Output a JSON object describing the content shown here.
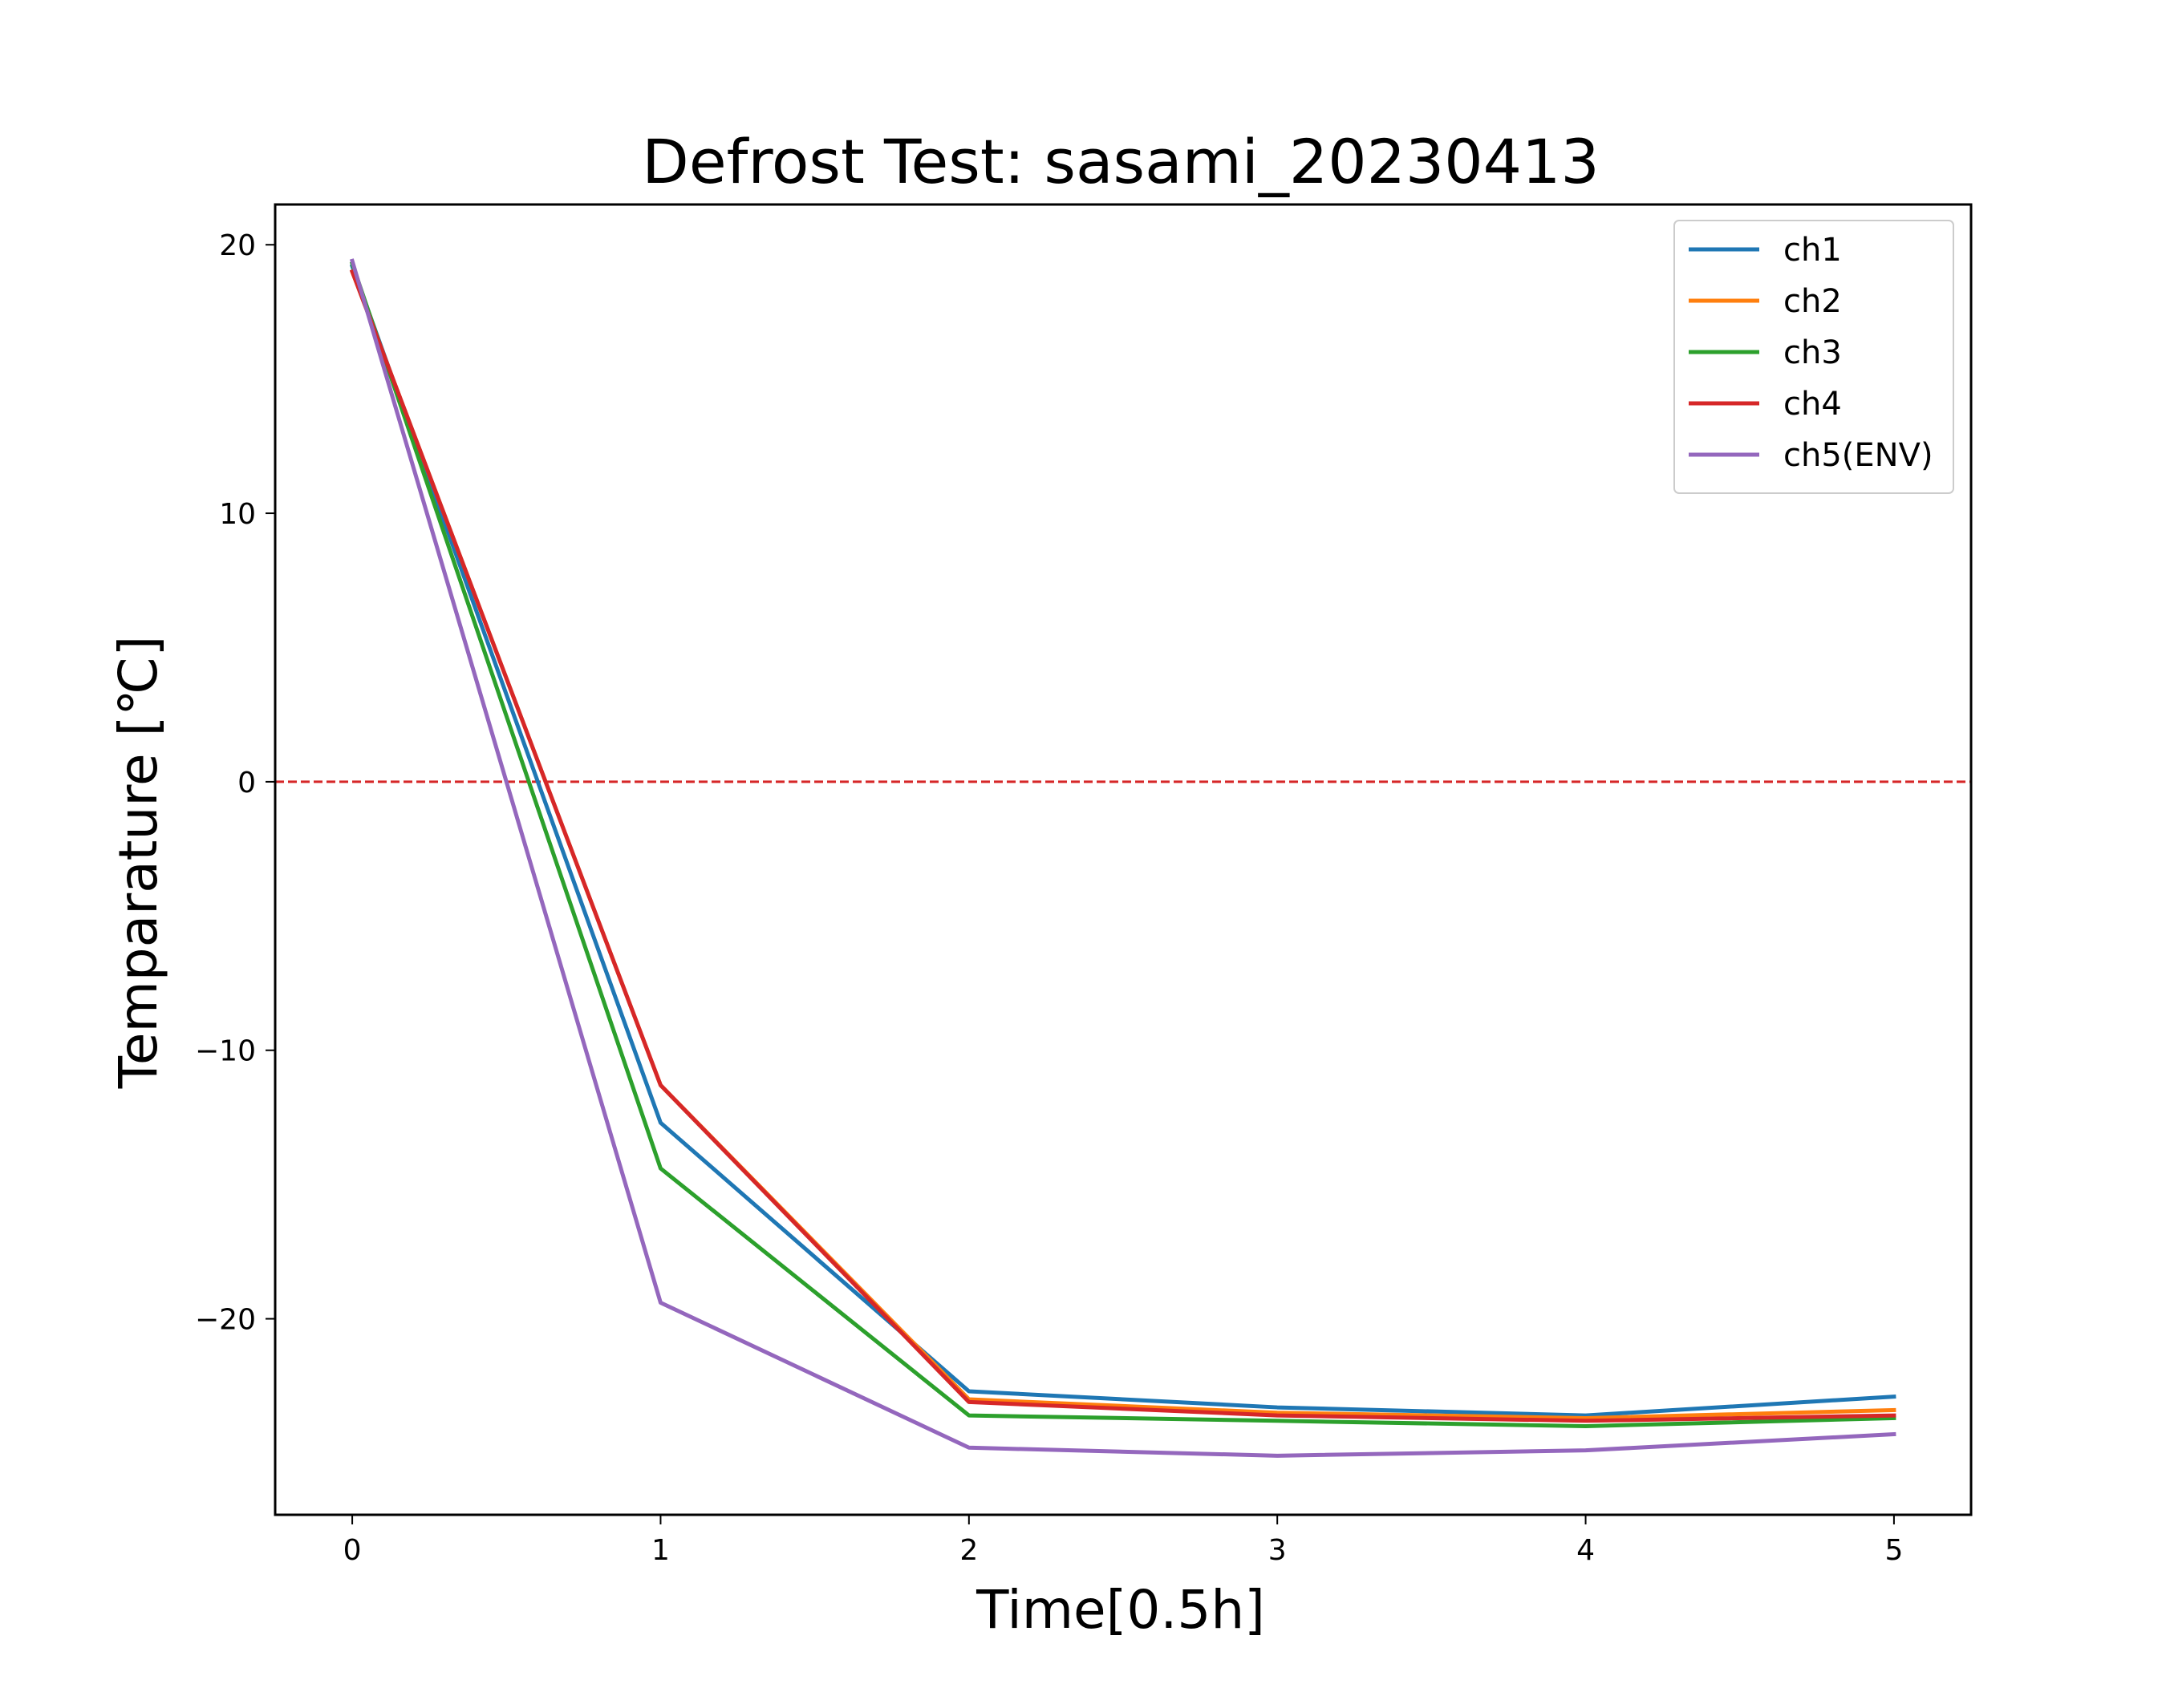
{
  "chart_data": {
    "type": "line",
    "title": "Defrost Test: sasami_20230413",
    "xlabel": "Time[0.5h]",
    "ylabel": "Temparature [℃]",
    "x": [
      0,
      1,
      2,
      3,
      4,
      5
    ],
    "xlim": [
      -0.25,
      5.25
    ],
    "ylim": [
      -27.3,
      21.5
    ],
    "xticks": [
      0,
      1,
      2,
      3,
      4,
      5
    ],
    "yticks": [
      20,
      10,
      0,
      -10,
      -20
    ],
    "ytick_labels": [
      "20",
      "10",
      "0",
      "−10",
      "−20"
    ],
    "grid": false,
    "legend_position": "top-right",
    "series": [
      {
        "name": "ch1",
        "color": "#1f77b4",
        "values": [
          19.2,
          -12.7,
          -22.7,
          -23.3,
          -23.6,
          -22.9
        ]
      },
      {
        "name": "ch2",
        "color": "#ff7f0e",
        "values": [
          19.0,
          -11.3,
          -23.0,
          -23.5,
          -23.7,
          -23.4
        ]
      },
      {
        "name": "ch3",
        "color": "#2ca02c",
        "values": [
          19.3,
          -14.4,
          -23.6,
          -23.8,
          -24.0,
          -23.7
        ]
      },
      {
        "name": "ch4",
        "color": "#d62728",
        "values": [
          19.0,
          -11.3,
          -23.1,
          -23.6,
          -23.8,
          -23.6
        ]
      },
      {
        "name": "ch5(ENV)",
        "color": "#9467bd",
        "values": [
          19.4,
          -19.4,
          -24.8,
          -25.1,
          -24.9,
          -24.3
        ]
      }
    ],
    "reference_line": {
      "y": 0,
      "color": "#d62728",
      "style": "dashed"
    }
  }
}
